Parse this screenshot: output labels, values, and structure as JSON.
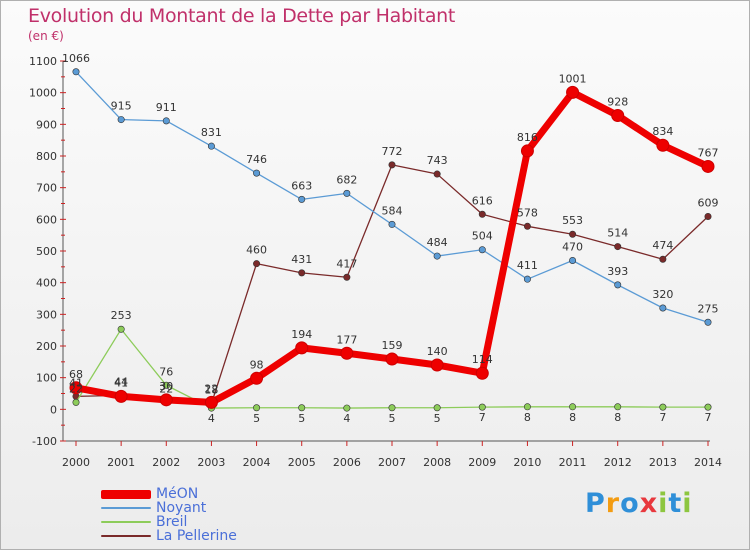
{
  "header": {
    "title": "Evolution du Montant de la Dette par Habitant",
    "unit": "(en €)"
  },
  "logo": {
    "letters": [
      {
        "ch": "P",
        "color": "#2f8fd8"
      },
      {
        "ch": "r",
        "color": "#f39c12"
      },
      {
        "ch": "o",
        "color": "#2f8fd8"
      },
      {
        "ch": "x",
        "color": "#e8383d"
      },
      {
        "ch": "i",
        "color": "#8dc63f"
      },
      {
        "ch": "t",
        "color": "#2f8fd8"
      },
      {
        "ch": "i",
        "color": "#8dc63f"
      }
    ]
  },
  "chart_data": {
    "type": "line",
    "title": "Evolution du Montant de la Dette par Habitant",
    "ylabel": "(en €)",
    "xlabel": "",
    "x": [
      "2000",
      "2001",
      "2002",
      "2003",
      "2004",
      "2005",
      "2006",
      "2007",
      "2008",
      "2009",
      "2010",
      "2011",
      "2012",
      "2013",
      "2014"
    ],
    "ylim": [
      -100,
      1100
    ],
    "yticks": [
      -100,
      0,
      100,
      200,
      300,
      400,
      500,
      600,
      700,
      800,
      900,
      1000,
      1100
    ],
    "grid": false,
    "legend_position": "bottom-left",
    "series": [
      {
        "name": "MéON",
        "color": "#ee0000",
        "values": [
          68,
          41,
          30,
          22,
          98,
          194,
          177,
          159,
          140,
          114,
          816,
          1001,
          928,
          834,
          767
        ]
      },
      {
        "name": "Noyant",
        "color": "#5b9bd5",
        "values": [
          1066,
          915,
          911,
          831,
          746,
          663,
          682,
          584,
          484,
          504,
          411,
          470,
          393,
          320,
          275
        ]
      },
      {
        "name": "Breil",
        "color": "#8dcc5a",
        "values": [
          22,
          253,
          76,
          4,
          5,
          5,
          4,
          5,
          5,
          7,
          8,
          8,
          8,
          7,
          7
        ]
      },
      {
        "name": "La Pellerine",
        "color": "#7a2a2a",
        "values": [
          41,
          44,
          22,
          18,
          460,
          431,
          417,
          772,
          743,
          616,
          578,
          553,
          514,
          474,
          609
        ]
      }
    ]
  }
}
